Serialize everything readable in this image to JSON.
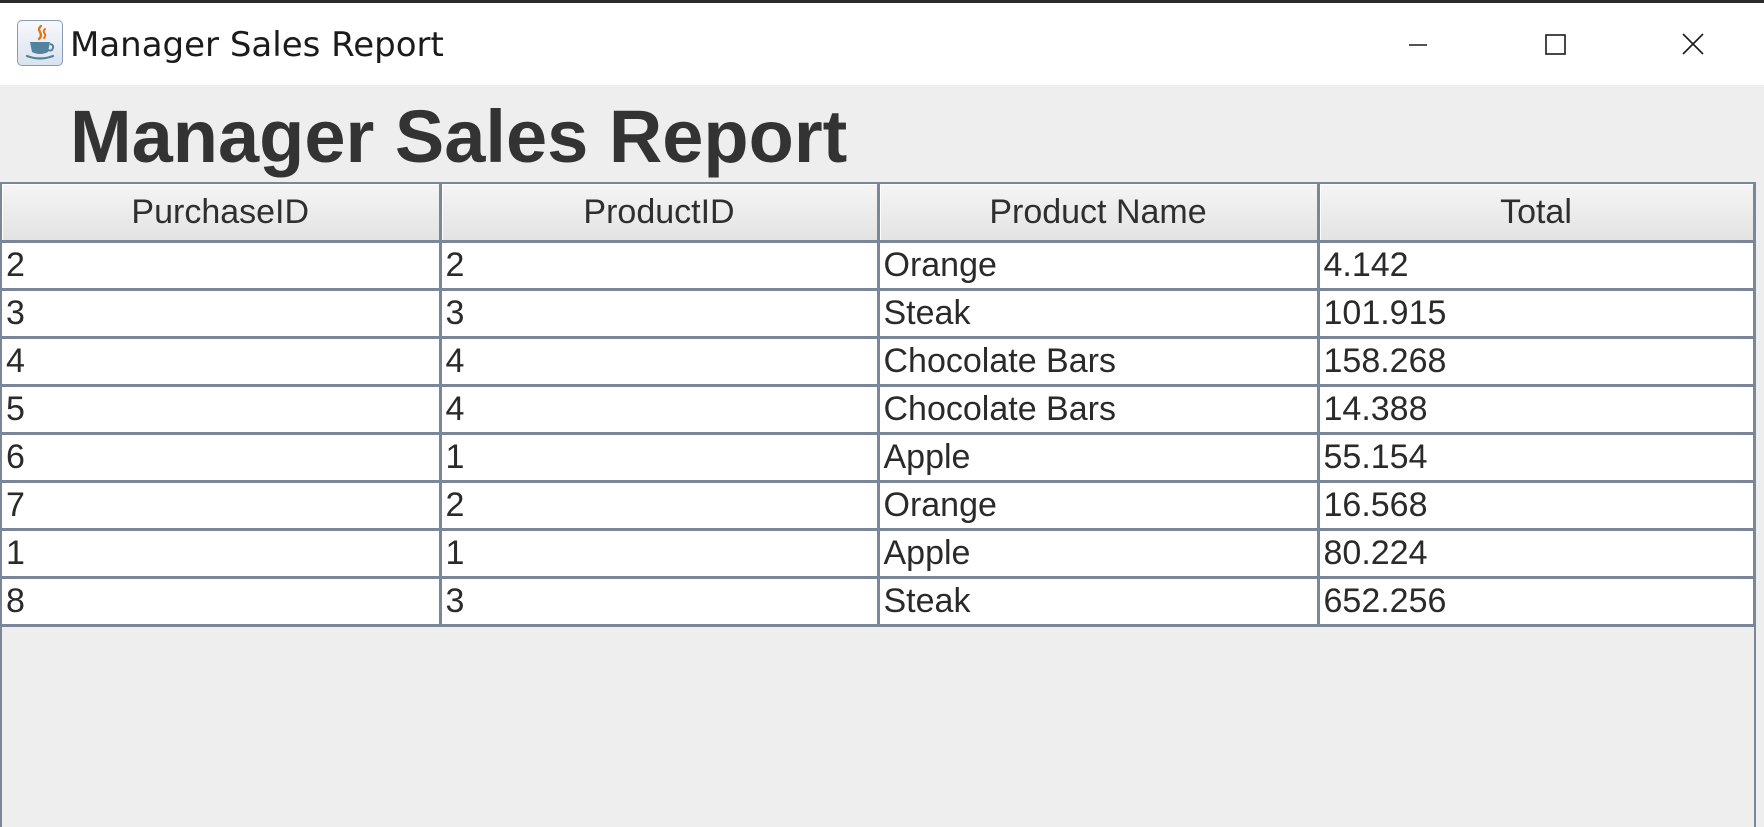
{
  "window": {
    "title": "Manager Sales Report",
    "icon": "java-cup-icon",
    "controls": {
      "minimize_icon": "minimize-icon",
      "maximize_icon": "maximize-icon",
      "close_icon": "close-icon"
    }
  },
  "report": {
    "heading": "Manager Sales Report",
    "columns": [
      "PurchaseID",
      "ProductID",
      "Product Name",
      "Total"
    ],
    "rows": [
      [
        "2",
        "2",
        "Orange",
        "4.142"
      ],
      [
        "3",
        "3",
        "Steak",
        "101.915"
      ],
      [
        "4",
        "4",
        "Chocolate Bars",
        "158.268"
      ],
      [
        "5",
        "4",
        "Chocolate Bars",
        "14.388"
      ],
      [
        "6",
        "1",
        "Apple",
        "55.154"
      ],
      [
        "7",
        "2",
        "Orange",
        "16.568"
      ],
      [
        "1",
        "1",
        "Apple",
        "80.224"
      ],
      [
        "8",
        "3",
        "Steak",
        "652.256"
      ]
    ]
  },
  "colors": {
    "background": "#eeeeee",
    "grid": "#7a8799",
    "text": "#2a2a2a",
    "titlebar": "#ffffff"
  }
}
